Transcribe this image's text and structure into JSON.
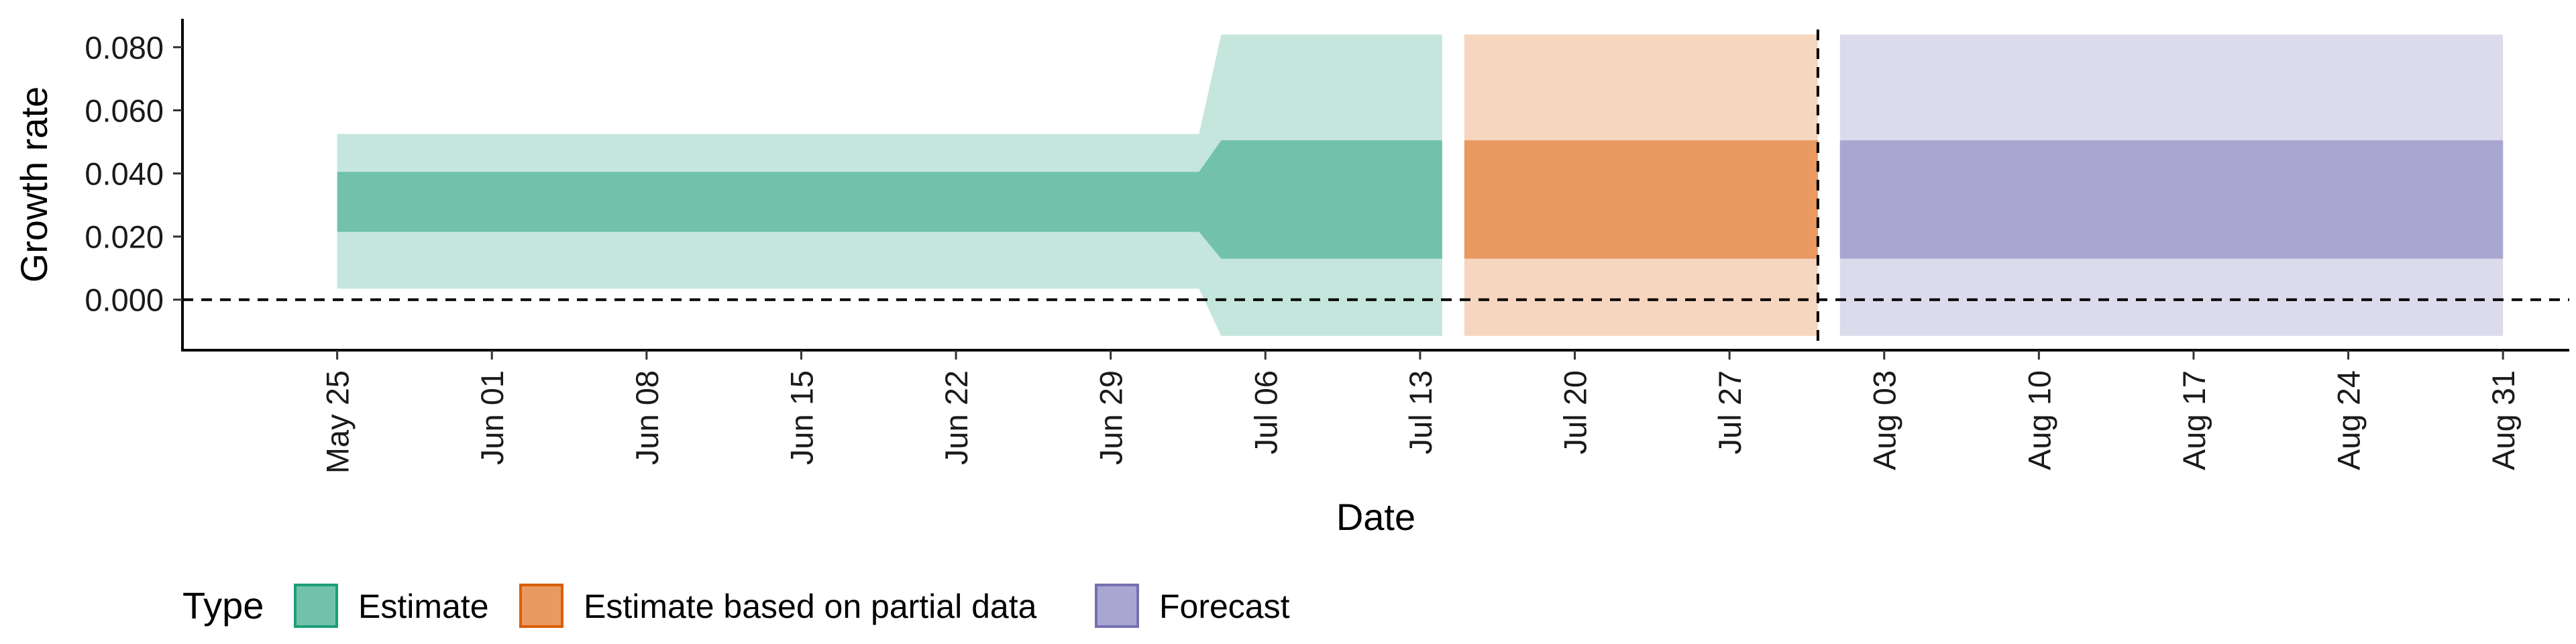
{
  "chart_data": {
    "type": "area",
    "xlabel": "Date",
    "ylabel": "Growth rate",
    "ylim": [
      -0.016,
      0.089
    ],
    "y_ticks": [
      0.0,
      0.02,
      0.04,
      0.06,
      0.08
    ],
    "y_tick_labels": [
      "0.000",
      "0.020",
      "0.040",
      "0.060",
      "0.080"
    ],
    "x_range": [
      "2020-05-18",
      "2020-09-03"
    ],
    "x_ticks": [
      "2020-05-25",
      "2020-06-01",
      "2020-06-08",
      "2020-06-15",
      "2020-06-22",
      "2020-06-29",
      "2020-07-06",
      "2020-07-13",
      "2020-07-20",
      "2020-07-27",
      "2020-08-03",
      "2020-08-10",
      "2020-08-17",
      "2020-08-24",
      "2020-08-31"
    ],
    "x_tick_labels": [
      "May 25",
      "Jun 01",
      "Jun 08",
      "Jun 15",
      "Jun 22",
      "Jun 29",
      "Jul 06",
      "Jul 13",
      "Jul 20",
      "Jul 27",
      "Aug 03",
      "Aug 10",
      "Aug 17",
      "Aug 24",
      "Aug 31"
    ],
    "reference_lines": {
      "horizontal_y": 0.0,
      "vertical_date": "2020-07-31"
    },
    "grid": false,
    "legend": {
      "title": "Type",
      "position": "bottom",
      "entries": [
        {
          "label": "Estimate",
          "fill": "#72c2aa",
          "border": "#1b9e77"
        },
        {
          "label": "Estimate based on partial data",
          "fill": "#e89a61",
          "border": "#d95f02"
        },
        {
          "label": "Forecast",
          "fill": "#a9a6d1",
          "border": "#7570b3"
        }
      ]
    },
    "series": [
      {
        "name": "Estimate",
        "color_inner": "#72c2aa",
        "color_outer": "#c5e6dc",
        "points": [
          {
            "x": "2020-05-25",
            "outer_lo": 0.0035,
            "inner_lo": 0.0215,
            "inner_hi": 0.0405,
            "outer_hi": 0.0525
          },
          {
            "x": "2020-07-03",
            "outer_lo": 0.0035,
            "inner_lo": 0.0215,
            "inner_hi": 0.0405,
            "outer_hi": 0.0525
          },
          {
            "x": "2020-07-04",
            "outer_lo": -0.0115,
            "inner_lo": 0.013,
            "inner_hi": 0.0505,
            "outer_hi": 0.084
          },
          {
            "x": "2020-07-14",
            "outer_lo": -0.0115,
            "inner_lo": 0.013,
            "inner_hi": 0.0505,
            "outer_hi": 0.084
          }
        ]
      },
      {
        "name": "Estimate based on partial data",
        "color_inner": "#e89a61",
        "color_outer": "#f6d6bf",
        "points": [
          {
            "x": "2020-07-15",
            "outer_lo": -0.0115,
            "inner_lo": 0.013,
            "inner_hi": 0.0505,
            "outer_hi": 0.084
          },
          {
            "x": "2020-07-31",
            "outer_lo": -0.0115,
            "inner_lo": 0.013,
            "inner_hi": 0.0505,
            "outer_hi": 0.084
          }
        ]
      },
      {
        "name": "Forecast",
        "color_inner": "#a9a6d1",
        "color_outer": "#dcdbec",
        "points": [
          {
            "x": "2020-08-01",
            "outer_lo": -0.0115,
            "inner_lo": 0.013,
            "inner_hi": 0.0505,
            "outer_hi": 0.084
          },
          {
            "x": "2020-08-31",
            "outer_lo": -0.0115,
            "inner_lo": 0.013,
            "inner_hi": 0.0505,
            "outer_hi": 0.084
          }
        ]
      }
    ]
  }
}
